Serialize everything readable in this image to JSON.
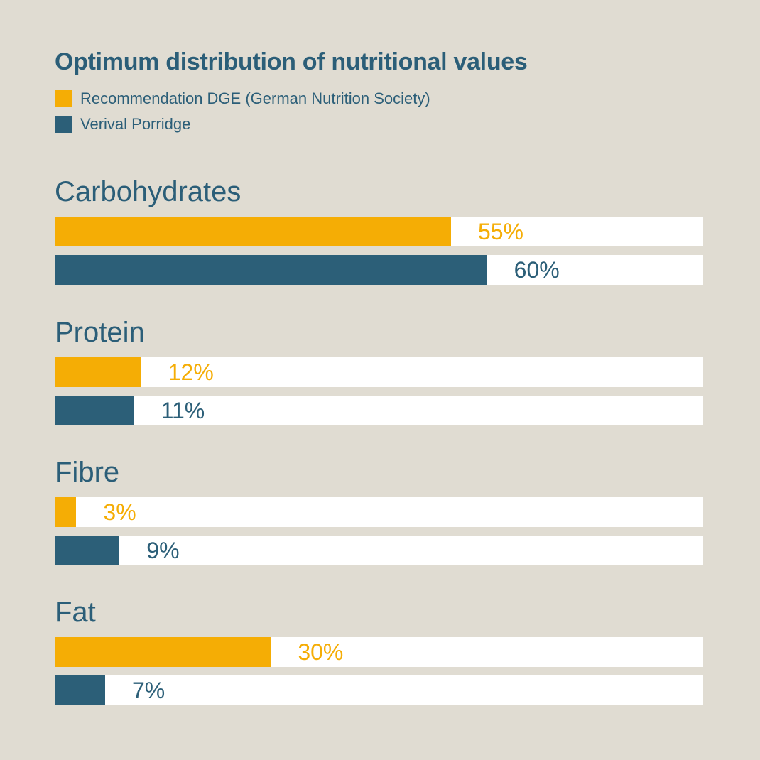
{
  "background_color": "#e0dcd2",
  "title": "Optimum distribution of nutritional values",
  "legend": [
    {
      "label": "Recommendation DGE (German Nutrition Society)",
      "color": "#f5ad05"
    },
    {
      "label": "Verival Porridge",
      "color": "#2c5f78"
    }
  ],
  "chart_data": {
    "type": "bar",
    "orientation": "horizontal",
    "title": "Optimum distribution of nutritional values",
    "categories": [
      "Carbohydrates",
      "Protein",
      "Fibre",
      "Fat"
    ],
    "series": [
      {
        "name": "Recommendation DGE (German Nutrition Society)",
        "color": "#f5ad05",
        "values": [
          55,
          12,
          3,
          30
        ]
      },
      {
        "name": "Verival Porridge",
        "color": "#2c5f78",
        "values": [
          60,
          11,
          9,
          7
        ]
      }
    ],
    "value_suffix": "%",
    "axis_max": 90,
    "track_color": "#ffffff",
    "legend_position": "top-left",
    "grid": false,
    "text_color": "#2b5e78"
  }
}
